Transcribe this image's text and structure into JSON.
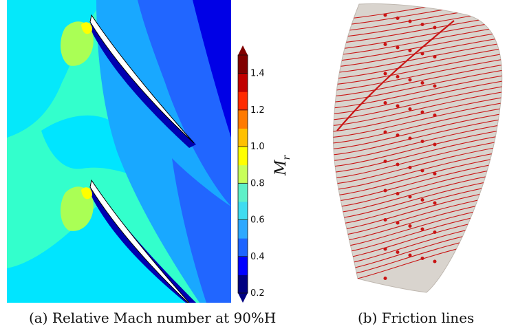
{
  "figure": {
    "panels": [
      {
        "caption": "(a) Relative Mach number at 90%H",
        "colorbar": {
          "label": "M",
          "label_subscript": "r",
          "ticks": [
            "1.4",
            "1.2",
            "1.0",
            "0.8",
            "0.6",
            "0.4",
            "0.2"
          ],
          "range": [
            0.2,
            1.5
          ],
          "colormap": [
            "#000080",
            "#0000ff",
            "#1e64ff",
            "#2ea8ff",
            "#3fdcf0",
            "#5ff0c8",
            "#c8ff5a",
            "#ffff00",
            "#ffc000",
            "#ff7a00",
            "#ff2a00",
            "#c00000",
            "#800000"
          ]
        },
        "colors": {
          "freestream": "#33ffcc",
          "cyan_region": "#00e5ff",
          "mid_blue": "#19a8ff",
          "deep_blue": "#2166ff",
          "dark_blue": "#0000e6",
          "yellow_green": "#aaff55"
        }
      },
      {
        "caption": "(b) Friction lines",
        "colors": {
          "surface": "#d9d4ce",
          "lines": "#c81414"
        }
      }
    ]
  }
}
